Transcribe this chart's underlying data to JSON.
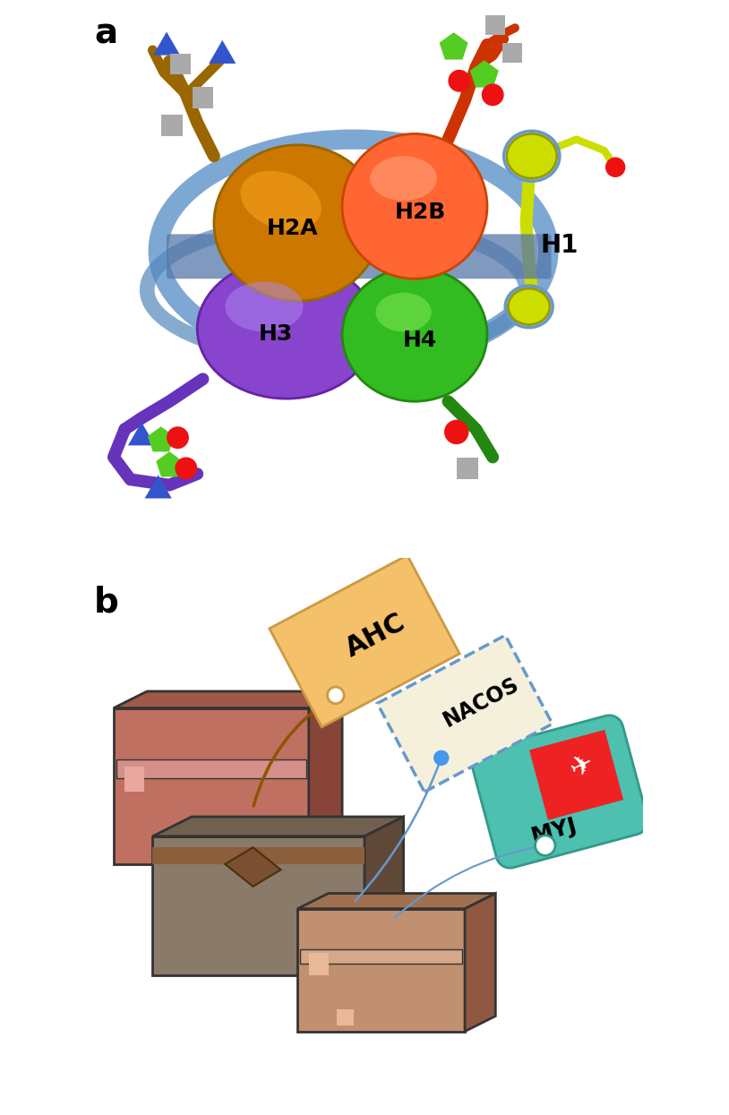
{
  "panel_a_label": "a",
  "panel_b_label": "b",
  "h2a_color": "#CC7700",
  "h2b_color": "#FF6633",
  "h3_color": "#8844CC",
  "h4_color": "#33BB22",
  "h1_color": "#CCDD00",
  "dna_color": "#6699CC",
  "h2a_label": "H2A",
  "h2b_label": "H2B",
  "h3_label": "H3",
  "h4_label": "H4",
  "h1_label": "H1",
  "red_circle_color": "#EE1111",
  "green_pent_color": "#55CC22",
  "blue_tri_color": "#3355CC",
  "gray_sq_color": "#AAAAAA",
  "ahc_color": "#F5C06A",
  "nacos_color": "#F5F0DC",
  "myj_color": "#4DC0B0",
  "myj_red_color": "#EE2222",
  "box1_color": "#C07060",
  "box2_color": "#8A7A6A",
  "box3_color": "#C09070"
}
